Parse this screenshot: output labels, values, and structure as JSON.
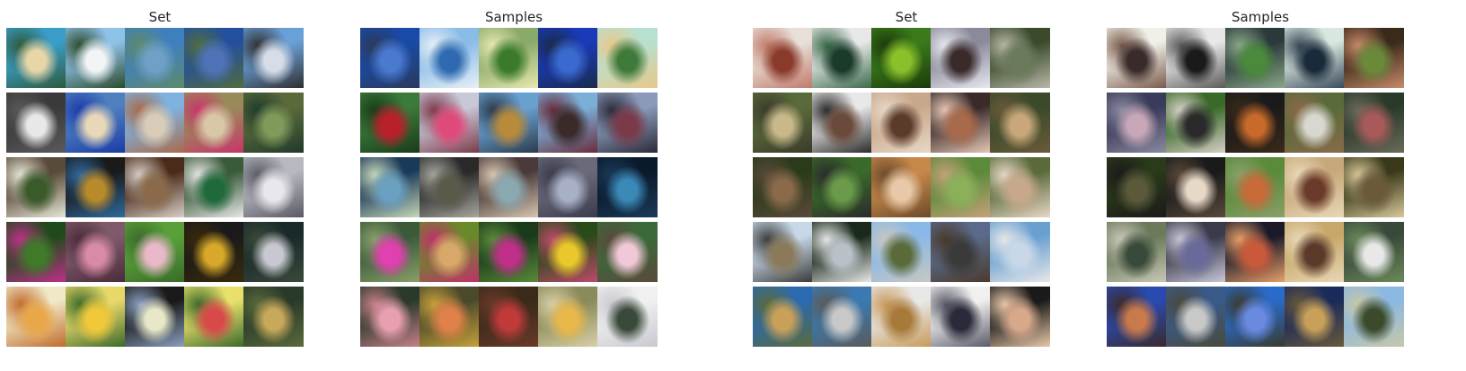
{
  "panels": [
    {
      "title": "Set",
      "rows": [
        [
          [
            "#3a9ec9",
            "#e8d6a8",
            "#2d5a3a"
          ],
          [
            "#8fc2e8",
            "#f2f4f6",
            "#2a4a2a"
          ],
          [
            "#3f7fc0",
            "#6fa0c6",
            "#5e8a6a"
          ],
          [
            "#234f9f",
            "#4f73b7",
            "#506c3c"
          ],
          [
            "#6aa0d8",
            "#d6dce8",
            "#2f2f2f"
          ]
        ],
        [
          [
            "#3a3a3a",
            "#e8e8e8",
            "#5a5a5a"
          ],
          [
            "#4f7fbf",
            "#e8d8b8",
            "#1a3aa8"
          ],
          [
            "#7fb2de",
            "#d8ccb8",
            "#a86a4a"
          ],
          [
            "#9a8a5a",
            "#d8c8a8",
            "#c8336a"
          ],
          [
            "#5a6a3a",
            "#7f9a5a",
            "#1f3a2a"
          ]
        ],
        [
          [
            "#5a4a3a",
            "#3a5a2a",
            "#e8e8d8"
          ],
          [
            "#1a1a1a",
            "#b88a2a",
            "#2f6aa0"
          ],
          [
            "#4a2a1a",
            "#8a6a4a",
            "#d8d0c8"
          ],
          [
            "#3a5a3a",
            "#1f6a3a",
            "#e8e8e8"
          ],
          [
            "#b8b8c0",
            "#e8e8ec",
            "#5a5a66"
          ]
        ],
        [
          [
            "#1f4a1a",
            "#3f7a2a",
            "#c02f8a"
          ],
          [
            "#7f5a6a",
            "#d88aa8",
            "#4a2a3a"
          ],
          [
            "#5aa03a",
            "#e8b8c8",
            "#3a6a2a"
          ],
          [
            "#1a1a1a",
            "#d8a82a",
            "#3a2a0a"
          ],
          [
            "#1a2a2a",
            "#c8c8d0",
            "#3a4a3a"
          ]
        ],
        [
          [
            "#f0e8c8",
            "#e8a84a",
            "#c06a2a"
          ],
          [
            "#e8d86a",
            "#f0c83a",
            "#3a6a2a"
          ],
          [
            "#1a1a1a",
            "#e8e8c8",
            "#8aa0c0"
          ],
          [
            "#e8e06a",
            "#d84a4a",
            "#3a6a2a"
          ],
          [
            "#2a3a2a",
            "#c8a85a",
            "#5a6a3a"
          ]
        ]
      ]
    },
    {
      "title": "Samples",
      "rows": [
        [
          [
            "#1a4aa8",
            "#4a7acf",
            "#2a3a5a"
          ],
          [
            "#8abce8",
            "#2f6ab0",
            "#e8f0f6"
          ],
          [
            "#8aaa6a",
            "#3a7a2a",
            "#e8e8b0"
          ],
          [
            "#1a3ab8",
            "#3a6acf",
            "#1a2a4a"
          ],
          [
            "#b8e0d0",
            "#3f7a3a",
            "#e8c88a"
          ]
        ],
        [
          [
            "#3a7a3a",
            "#b8202a",
            "#1a3a1a"
          ],
          [
            "#c8c8d8",
            "#e04a7a",
            "#7a3a4a"
          ],
          [
            "#6aa0d0",
            "#b88a3a",
            "#2a3a4a"
          ],
          [
            "#7ab0d8",
            "#3a2a2a",
            "#6a2a3a"
          ],
          [
            "#8a9ab8",
            "#7a3a4a",
            "#2a2a3a"
          ]
        ],
        [
          [
            "#1a3a5a",
            "#6aa0c0",
            "#c8d8b8"
          ],
          [
            "#2a2a2a",
            "#5a5a4a",
            "#a8a8a0"
          ],
          [
            "#4a3a3a",
            "#8aa8b0",
            "#d8c8b0"
          ],
          [
            "#6a6a7a",
            "#a8b0c8",
            "#3a3a4a"
          ],
          [
            "#0a1a2a",
            "#3a8ab8",
            "#1a3a5a"
          ]
        ],
        [
          [
            "#3a5a3a",
            "#e040b0",
            "#8aa06a"
          ],
          [
            "#6a8a2a",
            "#d8a86a",
            "#c0306a"
          ],
          [
            "#1a3a1a",
            "#c02f8a",
            "#5a8a3a"
          ],
          [
            "#2a4a1a",
            "#e8c82a",
            "#c04a6a"
          ],
          [
            "#3a6a3a",
            "#f0c8d8",
            "#5a4a3a"
          ]
        ],
        [
          [
            "#2a3a2a",
            "#e8a0b0",
            "#c8808a"
          ],
          [
            "#4a4a2a",
            "#e0804a",
            "#c8a03a"
          ],
          [
            "#3a2a1a",
            "#c03a3a",
            "#6a3a2a"
          ],
          [
            "#8a8a5a",
            "#e8b84a",
            "#d8d0a8"
          ],
          [
            "#f0f0f0",
            "#3a4a3a",
            "#c8c8d0"
          ]
        ]
      ]
    },
    {
      "title": "Set",
      "rows": [
        [
          [
            "#e8e0d8",
            "#8a3a2a",
            "#c07a6a"
          ],
          [
            "#e8e8e8",
            "#1a3a2a",
            "#3a6a4a"
          ],
          [
            "#3a7a1a",
            "#8ac02a",
            "#1a3a0a"
          ],
          [
            "#8a8a9a",
            "#3a2a2a",
            "#e8e8f0"
          ],
          [
            "#3a4a2a",
            "#6a7a5a",
            "#b8b8a8"
          ]
        ],
        [
          [
            "#5a6a3a",
            "#c8b88a",
            "#3a3a2a"
          ],
          [
            "#e8e8e8",
            "#6a4a3a",
            "#2a2a2a"
          ],
          [
            "#c8a88a",
            "#5a3a2a",
            "#e8d8c8"
          ],
          [
            "#3a2a2a",
            "#a86a4a",
            "#e8c8b8"
          ],
          [
            "#3a4a2a",
            "#c8a87a",
            "#6a5a3a"
          ]
        ],
        [
          [
            "#2a3a1a",
            "#8a6a4a",
            "#5a4a3a"
          ],
          [
            "#3a6a2a",
            "#6a9a4a",
            "#2a2a2a"
          ],
          [
            "#c8884a",
            "#e8c8a8",
            "#6a4a2a"
          ],
          [
            "#5a8a3a",
            "#8ab05a",
            "#c8a07a"
          ],
          [
            "#5a6a3a",
            "#c8a88a",
            "#e8d8c8"
          ]
        ],
        [
          [
            "#c8d8e8",
            "#8a7a5a",
            "#3a3a3a"
          ],
          [
            "#1a2a1a",
            "#b8c0c8",
            "#e8e8e8"
          ],
          [
            "#8ab8e8",
            "#5a6a3a",
            "#c8c8c0"
          ],
          [
            "#5a6a8a",
            "#3a3a3a",
            "#4a3a2a"
          ],
          [
            "#6aa0d0",
            "#c8d8e8",
            "#e8e8e8"
          ]
        ],
        [
          [
            "#2a6ab0",
            "#c8a05a",
            "#5a6a3a"
          ],
          [
            "#3a7ab0",
            "#c8c8c8",
            "#5a5a5a"
          ],
          [
            "#e8e8e8",
            "#a87a3a",
            "#c89a5a"
          ],
          [
            "#f0f0f0",
            "#2a2a3a",
            "#5a5a6a"
          ],
          [
            "#1a1a1a",
            "#d8a88a",
            "#e8c8a8"
          ]
        ]
      ]
    },
    {
      "title": "Samples",
      "rows": [
        [
          [
            "#f0f0e8",
            "#3a2a2a",
            "#7a5a4a"
          ],
          [
            "#e8e8e8",
            "#1a1a1a",
            "#5a5a5a"
          ],
          [
            "#2a3a3a",
            "#4a8a3a",
            "#8aa88a"
          ],
          [
            "#d8e8e0",
            "#1a2a3a",
            "#3a4a5a"
          ],
          [
            "#3a2a1a",
            "#6a8a3a",
            "#c88a6a"
          ]
        ],
        [
          [
            "#3a3a5a",
            "#c8a8b8",
            "#8a8aa0"
          ],
          [
            "#3a6a2a",
            "#2a2a2a",
            "#d8d0c8"
          ],
          [
            "#1a1a1a",
            "#c86a2a",
            "#3a2a1a"
          ],
          [
            "#5a6a3a",
            "#d8d8d0",
            "#8a6a4a"
          ],
          [
            "#2a3a2a",
            "#a85a5a",
            "#6a6a5a"
          ]
        ],
        [
          [
            "#2a3a1a",
            "#5a5a3a",
            "#1a1a1a"
          ],
          [
            "#1a1a1a",
            "#e8d8c8",
            "#5a4a3a"
          ],
          [
            "#5a8a3a",
            "#c86a3a",
            "#8aa06a"
          ],
          [
            "#c8a87a",
            "#6a3a2a",
            "#e8d8b8"
          ],
          [
            "#3a3a1a",
            "#6a5a3a",
            "#d8c89a"
          ]
        ],
        [
          [
            "#6a7a5a",
            "#3a4a3a",
            "#c8c8b8"
          ],
          [
            "#3a3a4a",
            "#6a6a9a",
            "#c8c8d8"
          ],
          [
            "#1a1a2a",
            "#c85a3a",
            "#e8a06a"
          ],
          [
            "#c8a86a",
            "#5a3a2a",
            "#e8d8b8"
          ],
          [
            "#3a4a3a",
            "#e8e8e8",
            "#6a8a5a"
          ]
        ],
        [
          [
            "#2a4ab0",
            "#c87a4a",
            "#3a2a2a"
          ],
          [
            "#3a5a8a",
            "#c8c8c8",
            "#4a4a3a"
          ],
          [
            "#2a6ac8",
            "#6a8ae0",
            "#3a3a2a"
          ],
          [
            "#1a2a5a",
            "#c8a05a",
            "#6a5a3a"
          ],
          [
            "#8ab8e0",
            "#3a4a2a",
            "#c8c8a8"
          ]
        ]
      ]
    }
  ]
}
